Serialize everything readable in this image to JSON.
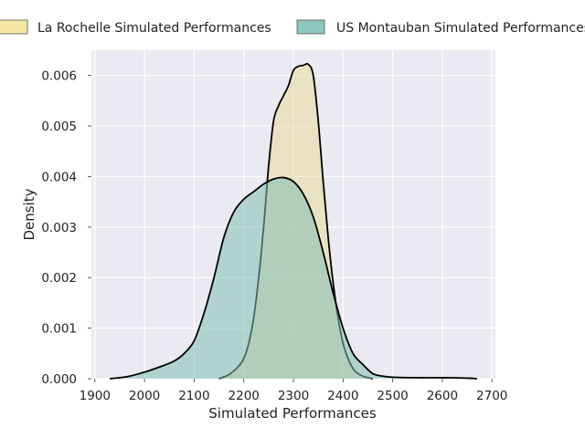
{
  "chart_data": {
    "type": "area",
    "title": "",
    "xlabel": "Simulated Performances",
    "ylabel": "Density",
    "xlim": [
      1893,
      2707
    ],
    "ylim": [
      0,
      0.0065
    ],
    "xticks": [
      1900,
      2000,
      2100,
      2200,
      2300,
      2400,
      2500,
      2600,
      2700
    ],
    "xtick_labels": [
      "1900",
      "2000",
      "2100",
      "2200",
      "2300",
      "2400",
      "2500",
      "2600",
      "2700"
    ],
    "yticks": [
      0,
      0.001,
      0.002,
      0.003,
      0.004,
      0.005,
      0.006
    ],
    "ytick_labels": [
      "0.000",
      "0.001",
      "0.002",
      "0.003",
      "0.004",
      "0.005",
      "0.006"
    ],
    "grid": true,
    "legend_position": "top-center",
    "series": [
      {
        "name": "La Rochelle Simulated Performances",
        "color": "#e9d99a",
        "alpha": 0.55,
        "x": [
          2150,
          2170,
          2190,
          2200,
          2210,
          2220,
          2230,
          2240,
          2250,
          2260,
          2270,
          2280,
          2290,
          2300,
          2310,
          2320,
          2330,
          2340,
          2350,
          2360,
          2370,
          2380,
          2390,
          2400,
          2410,
          2420,
          2430,
          2440,
          2450,
          2460
        ],
        "values": [
          0.0,
          8e-05,
          0.00025,
          0.0004,
          0.0007,
          0.0012,
          0.002,
          0.003,
          0.0042,
          0.0051,
          0.0054,
          0.0056,
          0.0058,
          0.0061,
          0.00618,
          0.0062,
          0.00622,
          0.006,
          0.0051,
          0.0039,
          0.0028,
          0.0019,
          0.0012,
          0.0007,
          0.0004,
          0.0002,
          0.0001,
          5e-05,
          2e-05,
          0.0
        ]
      },
      {
        "name": "US Montauban Simulated Performances",
        "color": "#7fbfb5",
        "alpha": 0.55,
        "x": [
          1930,
          1950,
          1970,
          2000,
          2030,
          2060,
          2080,
          2100,
          2120,
          2140,
          2160,
          2180,
          2200,
          2220,
          2240,
          2260,
          2280,
          2300,
          2320,
          2340,
          2360,
          2380,
          2400,
          2420,
          2440,
          2460,
          2480,
          2500,
          2550,
          2600,
          2650,
          2670
        ],
        "values": [
          0.0,
          2e-05,
          5e-05,
          0.00013,
          0.00023,
          0.00035,
          0.0005,
          0.00075,
          0.0013,
          0.002,
          0.0028,
          0.0033,
          0.00355,
          0.0037,
          0.00385,
          0.00395,
          0.00398,
          0.0039,
          0.00365,
          0.0032,
          0.0025,
          0.0017,
          0.001,
          0.0005,
          0.00028,
          0.0001,
          5e-05,
          3e-05,
          2e-05,
          2e-05,
          1e-05,
          0.0
        ]
      }
    ]
  }
}
